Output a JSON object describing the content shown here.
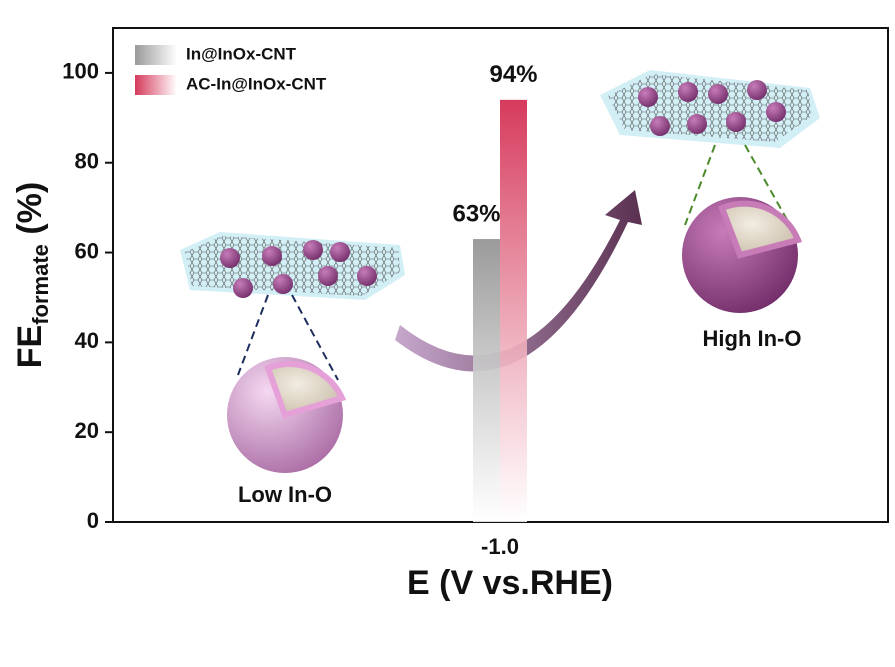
{
  "chart_data": {
    "type": "bar",
    "x_label": "E (V vs.RHE)",
    "y_label": [
      "FE",
      "formate",
      " (%)"
    ],
    "categories": [
      "-1.0"
    ],
    "series": [
      {
        "name": "In@InOx-CNT",
        "color": "#9a9a9a",
        "values": [
          63
        ],
        "value_labels": [
          "63%"
        ]
      },
      {
        "name": "AC-In@InOx-CNT",
        "color": "#d63a5c",
        "values": [
          94
        ],
        "value_labels": [
          "94%"
        ]
      }
    ],
    "ylim": [
      0,
      110
    ],
    "yticks": [
      0,
      20,
      40,
      60,
      80,
      100
    ],
    "annotations": [
      "Low In-O",
      "High In-O"
    ]
  }
}
